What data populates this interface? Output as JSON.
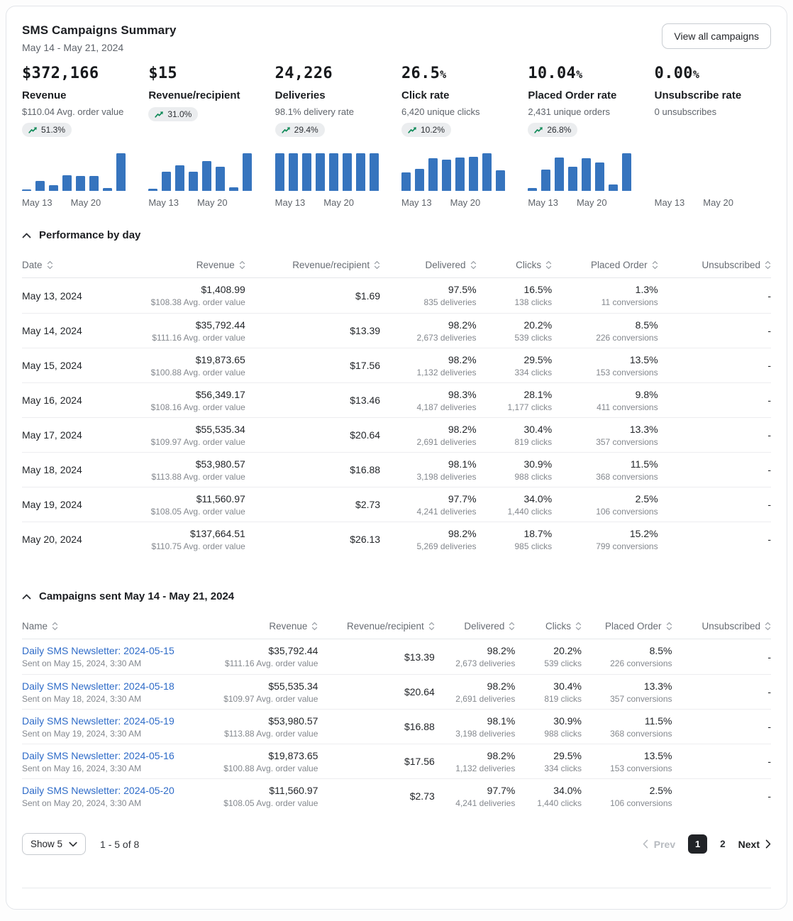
{
  "header": {
    "title": "SMS Campaigns Summary",
    "date_range": "May 14 - May 21, 2024",
    "view_all_label": "View all campaigns"
  },
  "colors": {
    "bar_blue": "#3674be",
    "link_blue": "#2e6bc8",
    "trend_green": "#0f8a58"
  },
  "kpis": [
    {
      "value": "$372,166",
      "suffix": "",
      "label": "Revenue",
      "sub": "$110.04 Avg. order value",
      "badge": "51.3%",
      "chart": [
        1408.99,
        35792.44,
        19873.65,
        56349.17,
        55535.34,
        53980.57,
        11560.97,
        137664.51
      ],
      "x_labels": [
        "May 13",
        "May 20"
      ]
    },
    {
      "value": "$15",
      "suffix": "",
      "label": "Revenue/recipient",
      "sub": "",
      "badge": "31.0%",
      "chart": [
        1.69,
        13.39,
        17.56,
        13.46,
        20.64,
        16.88,
        2.73,
        26.13
      ],
      "x_labels": [
        "May 13",
        "May 20"
      ]
    },
    {
      "value": "24,226",
      "suffix": "",
      "label": "Deliveries",
      "sub": "98.1% delivery rate",
      "badge": "29.4%",
      "chart": [
        97.5,
        98.2,
        98.2,
        98.3,
        98.2,
        98.1,
        97.7,
        98.2
      ],
      "x_labels": [
        "May 13",
        "May 20"
      ]
    },
    {
      "value": "26.5",
      "suffix": "%",
      "label": "Click rate",
      "sub": "6,420 unique clicks",
      "badge": "10.2%",
      "chart": [
        16.5,
        20.2,
        29.5,
        28.1,
        30.4,
        30.9,
        34.0,
        18.7
      ],
      "x_labels": [
        "May 13",
        "May 20"
      ]
    },
    {
      "value": "10.04",
      "suffix": "%",
      "label": "Placed Order rate",
      "sub": "2,431 unique orders",
      "badge": "26.8%",
      "chart": [
        1.3,
        8.5,
        13.5,
        9.8,
        13.3,
        11.5,
        2.5,
        15.2
      ],
      "x_labels": [
        "May 13",
        "May 20"
      ]
    },
    {
      "value": "0.00",
      "suffix": "%",
      "label": "Unsubscribe rate",
      "sub": "0 unsubscribes",
      "badge": "",
      "chart": [
        0,
        0,
        0,
        0,
        0,
        0,
        0,
        0
      ],
      "x_labels": [
        "May 13",
        "May 20"
      ]
    }
  ],
  "performance": {
    "title": "Performance by day",
    "columns": [
      "Date",
      "Revenue",
      "Revenue/recipient",
      "Delivered",
      "Clicks",
      "Placed Order",
      "Unsubscribed"
    ],
    "rows": [
      {
        "cells": [
          {
            "m": "May 13, 2024"
          },
          {
            "m": "$1,408.99",
            "s": "$108.38 Avg. order value"
          },
          {
            "m": "$1.69"
          },
          {
            "m": "97.5%",
            "s": "835 deliveries"
          },
          {
            "m": "16.5%",
            "s": "138 clicks"
          },
          {
            "m": "1.3%",
            "s": "11 conversions"
          },
          {
            "m": "-"
          }
        ]
      },
      {
        "cells": [
          {
            "m": "May 14, 2024"
          },
          {
            "m": "$35,792.44",
            "s": "$111.16 Avg. order value"
          },
          {
            "m": "$13.39"
          },
          {
            "m": "98.2%",
            "s": "2,673 deliveries"
          },
          {
            "m": "20.2%",
            "s": "539 clicks"
          },
          {
            "m": "8.5%",
            "s": "226 conversions"
          },
          {
            "m": "-"
          }
        ]
      },
      {
        "cells": [
          {
            "m": "May 15, 2024"
          },
          {
            "m": "$19,873.65",
            "s": "$100.88 Avg. order value"
          },
          {
            "m": "$17.56"
          },
          {
            "m": "98.2%",
            "s": "1,132 deliveries"
          },
          {
            "m": "29.5%",
            "s": "334 clicks"
          },
          {
            "m": "13.5%",
            "s": "153 conversions"
          },
          {
            "m": "-"
          }
        ]
      },
      {
        "cells": [
          {
            "m": "May 16, 2024"
          },
          {
            "m": "$56,349.17",
            "s": "$108.16 Avg. order value"
          },
          {
            "m": "$13.46"
          },
          {
            "m": "98.3%",
            "s": "4,187 deliveries"
          },
          {
            "m": "28.1%",
            "s": "1,177 clicks"
          },
          {
            "m": "9.8%",
            "s": "411 conversions"
          },
          {
            "m": "-"
          }
        ]
      },
      {
        "cells": [
          {
            "m": "May 17, 2024"
          },
          {
            "m": "$55,535.34",
            "s": "$109.97 Avg. order value"
          },
          {
            "m": "$20.64"
          },
          {
            "m": "98.2%",
            "s": "2,691 deliveries"
          },
          {
            "m": "30.4%",
            "s": "819 clicks"
          },
          {
            "m": "13.3%",
            "s": "357 conversions"
          },
          {
            "m": "-"
          }
        ]
      },
      {
        "cells": [
          {
            "m": "May 18, 2024"
          },
          {
            "m": "$53,980.57",
            "s": "$113.88 Avg. order value"
          },
          {
            "m": "$16.88"
          },
          {
            "m": "98.1%",
            "s": "3,198 deliveries"
          },
          {
            "m": "30.9%",
            "s": "988 clicks"
          },
          {
            "m": "11.5%",
            "s": "368 conversions"
          },
          {
            "m": "-"
          }
        ]
      },
      {
        "cells": [
          {
            "m": "May 19, 2024"
          },
          {
            "m": "$11,560.97",
            "s": "$108.05 Avg. order value"
          },
          {
            "m": "$2.73"
          },
          {
            "m": "97.7%",
            "s": "4,241 deliveries"
          },
          {
            "m": "34.0%",
            "s": "1,440 clicks"
          },
          {
            "m": "2.5%",
            "s": "106 conversions"
          },
          {
            "m": "-"
          }
        ]
      },
      {
        "cells": [
          {
            "m": "May 20, 2024"
          },
          {
            "m": "$137,664.51",
            "s": "$110.75 Avg. order value"
          },
          {
            "m": "$26.13"
          },
          {
            "m": "98.2%",
            "s": "5,269 deliveries"
          },
          {
            "m": "18.7%",
            "s": "985 clicks"
          },
          {
            "m": "15.2%",
            "s": "799 conversions"
          },
          {
            "m": "-"
          }
        ]
      }
    ]
  },
  "campaigns": {
    "title": "Campaigns sent May 14 - May 21, 2024",
    "columns": [
      "Name",
      "Revenue",
      "Revenue/recipient",
      "Delivered",
      "Clicks",
      "Placed Order",
      "Unsubscribed"
    ],
    "rows": [
      {
        "cells": [
          {
            "m": "Daily SMS Newsletter: 2024-05-15",
            "s": "Sent on May 15, 2024, 3:30 AM"
          },
          {
            "m": "$35,792.44",
            "s": "$111.16 Avg. order value"
          },
          {
            "m": "$13.39"
          },
          {
            "m": "98.2%",
            "s": "2,673 deliveries"
          },
          {
            "m": "20.2%",
            "s": "539 clicks"
          },
          {
            "m": "8.5%",
            "s": "226 conversions"
          },
          {
            "m": "-"
          }
        ]
      },
      {
        "cells": [
          {
            "m": "Daily SMS Newsletter: 2024-05-18",
            "s": "Sent on May 18, 2024, 3:30 AM"
          },
          {
            "m": "$55,535.34",
            "s": "$109.97 Avg. order value"
          },
          {
            "m": "$20.64"
          },
          {
            "m": "98.2%",
            "s": "2,691 deliveries"
          },
          {
            "m": "30.4%",
            "s": "819 clicks"
          },
          {
            "m": "13.3%",
            "s": "357 conversions"
          },
          {
            "m": "-"
          }
        ]
      },
      {
        "cells": [
          {
            "m": "Daily SMS Newsletter: 2024-05-19",
            "s": "Sent on May 19, 2024, 3:30 AM"
          },
          {
            "m": "$53,980.57",
            "s": "$113.88 Avg. order value"
          },
          {
            "m": "$16.88"
          },
          {
            "m": "98.1%",
            "s": "3,198 deliveries"
          },
          {
            "m": "30.9%",
            "s": "988 clicks"
          },
          {
            "m": "11.5%",
            "s": "368 conversions"
          },
          {
            "m": "-"
          }
        ]
      },
      {
        "cells": [
          {
            "m": "Daily SMS Newsletter: 2024-05-16",
            "s": "Sent on May 16, 2024, 3:30 AM"
          },
          {
            "m": "$19,873.65",
            "s": "$100.88 Avg. order value"
          },
          {
            "m": "$17.56"
          },
          {
            "m": "98.2%",
            "s": "1,132 deliveries"
          },
          {
            "m": "29.5%",
            "s": "334 clicks"
          },
          {
            "m": "13.5%",
            "s": "153 conversions"
          },
          {
            "m": "-"
          }
        ]
      },
      {
        "cells": [
          {
            "m": "Daily SMS Newsletter: 2024-05-20",
            "s": "Sent on May 20, 2024, 3:30 AM"
          },
          {
            "m": "$11,560.97",
            "s": "$108.05 Avg. order value"
          },
          {
            "m": "$2.73"
          },
          {
            "m": "97.7%",
            "s": "4,241 deliveries"
          },
          {
            "m": "34.0%",
            "s": "1,440 clicks"
          },
          {
            "m": "2.5%",
            "s": "106 conversions"
          },
          {
            "m": "-"
          }
        ]
      }
    ]
  },
  "pagination": {
    "show_label": "Show 5",
    "range": "1 - 5 of 8",
    "prev_label": "Prev",
    "pages": [
      "1",
      "2"
    ],
    "active_page": "1",
    "next_label": "Next"
  }
}
